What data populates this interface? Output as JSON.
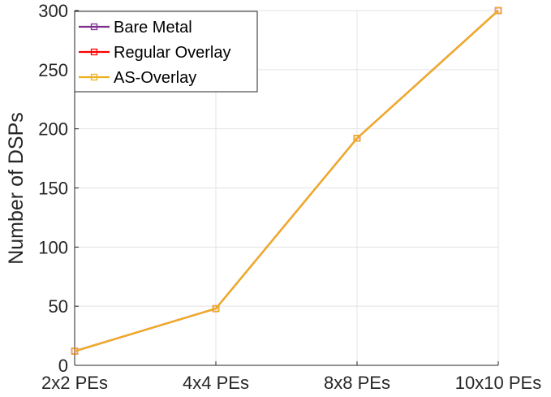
{
  "chart_data": {
    "type": "line",
    "title": "",
    "xlabel": "",
    "ylabel": "Number of DSPs",
    "categories": [
      "2x2 PEs",
      "4x4 PEs",
      "8x8 PEs",
      "10x10 PEs"
    ],
    "ylim": [
      0,
      300
    ],
    "yticks": [
      0,
      50,
      100,
      150,
      200,
      250,
      300
    ],
    "grid": true,
    "legend_position": "top-left",
    "series": [
      {
        "name": "Bare Metal",
        "color": "#7E2F8E",
        "marker": "square",
        "values": [
          12,
          48,
          192,
          300
        ]
      },
      {
        "name": "Regular Overlay",
        "color": "#FF0000",
        "marker": "square",
        "values": [
          12,
          48,
          192,
          300
        ]
      },
      {
        "name": "AS-Overlay",
        "color": "#EDB120",
        "marker": "square",
        "values": [
          12,
          48,
          192,
          300
        ]
      }
    ]
  }
}
